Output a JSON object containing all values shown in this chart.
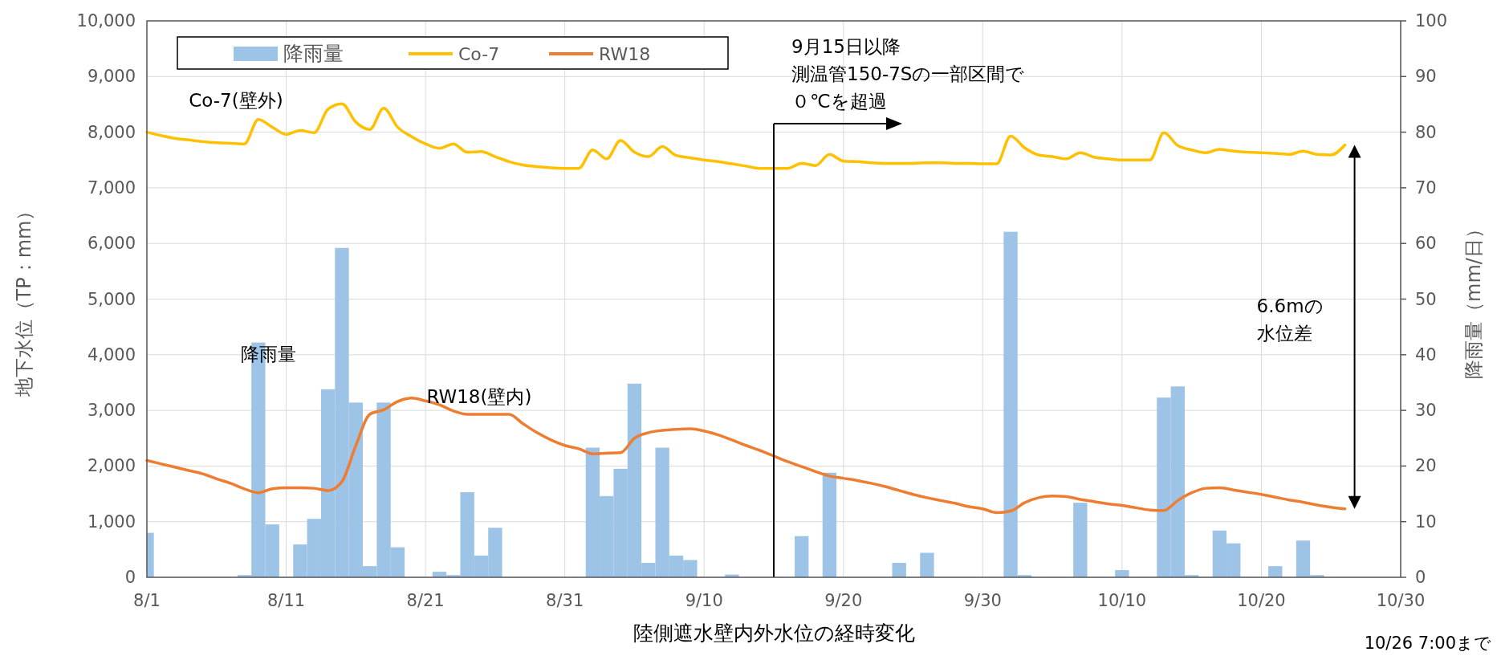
{
  "chart_data": {
    "type": "line",
    "xlabel": "陸側遮水壁内外水位の経時変化",
    "ylabel": "地下水位（TP：mm）",
    "y2label": "降雨量（mm/日）",
    "x": [
      "--08-01",
      "--08-02",
      "--08-03",
      "--08-04",
      "--08-05",
      "--08-06",
      "--08-07",
      "--08-08",
      "--08-09",
      "--08-10",
      "--08-11",
      "--08-12",
      "--08-13",
      "--08-14",
      "--08-15",
      "--08-16",
      "--08-17",
      "--08-18",
      "--08-19",
      "--08-20",
      "--08-21",
      "--08-22",
      "--08-23",
      "--08-24",
      "--08-25",
      "--08-26",
      "--08-27",
      "--08-28",
      "--08-29",
      "--08-30",
      "--08-31",
      "--09-01",
      "--09-02",
      "--09-03",
      "--09-04",
      "--09-05",
      "--09-06",
      "--09-07",
      "--09-08",
      "--09-09",
      "--09-10",
      "--09-11",
      "--09-12",
      "--09-13",
      "--09-14",
      "--09-15",
      "--09-16",
      "--09-17",
      "--09-18",
      "--09-19",
      "--09-20",
      "--09-21",
      "--09-22",
      "--09-23",
      "--09-24",
      "--09-25",
      "--09-26",
      "--09-27",
      "--09-28",
      "--09-29",
      "--09-30",
      "--10-01",
      "--10-02",
      "--10-03",
      "--10-04",
      "--10-05",
      "--10-06",
      "--10-07",
      "--10-08",
      "--10-09",
      "--10-10",
      "--10-11",
      "--10-12",
      "--10-13",
      "--10-14",
      "--10-15",
      "--10-16",
      "--10-17",
      "--10-18",
      "--10-19",
      "--10-20",
      "--10-21",
      "--10-22",
      "--10-23",
      "--10-24",
      "--10-25",
      "--10-26"
    ],
    "series": [
      {
        "name": "降雨量",
        "type": "bar",
        "axis": "y2",
        "color": "#9dc3e6",
        "x": [
          "--08-01",
          "--08-08",
          "--08-09",
          "--08-10",
          "--08-12",
          "--08-13",
          "--08-14",
          "--08-15",
          "--08-16",
          "--08-17",
          "--08-18",
          "--08-19",
          "--08-22",
          "--08-23",
          "--08-24",
          "--08-25",
          "--08-26",
          "--09-02",
          "--09-03",
          "--09-04",
          "--09-05",
          "--09-06",
          "--09-07",
          "--09-08",
          "--09-09",
          "--09-12",
          "--09-17",
          "--09-19",
          "--09-24",
          "--09-26",
          "--10-02",
          "--10-03",
          "--10-07",
          "--10-10",
          "--10-13",
          "--10-14",
          "--10-15",
          "--10-17",
          "--10-18",
          "--10-21",
          "--10-23",
          "--10-24"
        ],
        "values": [
          8,
          0.4,
          42.2,
          9.5,
          5.9,
          10.5,
          33.8,
          59.2,
          31.4,
          2,
          31.4,
          5.4,
          1,
          0.4,
          15.3,
          3.9,
          8.9,
          23.3,
          14.6,
          19.5,
          34.8,
          2.6,
          23.3,
          3.9,
          3.1,
          0.5,
          7.4,
          18.8,
          2.6,
          4.4,
          62.1,
          0.4,
          13.4,
          1.3,
          32.3,
          34.3,
          0.4,
          8.4,
          6.1,
          2,
          6.6,
          0.4
        ]
      },
      {
        "name": "Co-7",
        "color": "#ffc000",
        "values": [
          8000,
          7940,
          7890,
          7860,
          7830,
          7810,
          7800,
          7790,
          8230,
          8090,
          7960,
          8030,
          7990,
          8410,
          8510,
          8180,
          8050,
          8430,
          8090,
          7920,
          7790,
          7710,
          7790,
          7640,
          7650,
          7560,
          7470,
          7410,
          7380,
          7360,
          7350,
          7350,
          7680,
          7520,
          7850,
          7640,
          7560,
          7740,
          7580,
          7540,
          7500,
          7470,
          7430,
          7390,
          7350,
          7350,
          7350,
          7440,
          7400,
          7600,
          7480,
          7470,
          7450,
          7440,
          7440,
          7440,
          7450,
          7450,
          7440,
          7440,
          7430,
          7430,
          7930,
          7720,
          7590,
          7560,
          7520,
          7630,
          7550,
          7520,
          7500,
          7500,
          7500,
          7990,
          7760,
          7680,
          7630,
          7690,
          7660,
          7640,
          7630,
          7620,
          7600,
          7660,
          7600,
          7590,
          7770
        ]
      },
      {
        "name": "RW18",
        "color": "#ed7d31",
        "values": [
          2100,
          2040,
          1980,
          1920,
          1860,
          1770,
          1690,
          1590,
          1520,
          1590,
          1610,
          1610,
          1600,
          1560,
          1720,
          2370,
          2930,
          3010,
          3160,
          3220,
          3170,
          3100,
          2990,
          2930,
          2930,
          2930,
          2930,
          2760,
          2600,
          2470,
          2370,
          2310,
          2220,
          2230,
          2240,
          2500,
          2600,
          2640,
          2660,
          2670,
          2630,
          2560,
          2470,
          2370,
          2280,
          2180,
          2080,
          1990,
          1900,
          1820,
          1780,
          1740,
          1690,
          1630,
          1560,
          1490,
          1430,
          1380,
          1330,
          1270,
          1230,
          1160,
          1190,
          1340,
          1430,
          1460,
          1450,
          1400,
          1360,
          1320,
          1290,
          1250,
          1210,
          1200,
          1380,
          1520,
          1600,
          1610,
          1570,
          1530,
          1490,
          1440,
          1390,
          1350,
          1300,
          1260,
          1230
        ]
      }
    ],
    "xlim": [
      "--08-01",
      "--10-30"
    ],
    "xticks": [
      {
        "value": "--08-01",
        "label": "8/1"
      },
      {
        "value": "--08-11",
        "label": "8/11"
      },
      {
        "value": "--08-21",
        "label": "8/21"
      },
      {
        "value": "--08-31",
        "label": "8/31"
      },
      {
        "value": "--09-10",
        "label": "9/10"
      },
      {
        "value": "--09-20",
        "label": "9/20"
      },
      {
        "value": "--09-30",
        "label": "9/30"
      },
      {
        "value": "--10-10",
        "label": "10/10"
      },
      {
        "value": "--10-20",
        "label": "10/20"
      },
      {
        "value": "--10-30",
        "label": "10/30"
      }
    ],
    "ylim": [
      0,
      10000
    ],
    "yticks": [
      {
        "value": 0,
        "label": "0"
      },
      {
        "value": 1000,
        "label": "1,000"
      },
      {
        "value": 2000,
        "label": "2,000"
      },
      {
        "value": 3000,
        "label": "3,000"
      },
      {
        "value": 4000,
        "label": "4,000"
      },
      {
        "value": 5000,
        "label": "5,000"
      },
      {
        "value": 6000,
        "label": "6,000"
      },
      {
        "value": 7000,
        "label": "7,000"
      },
      {
        "value": 8000,
        "label": "8,000"
      },
      {
        "value": 9000,
        "label": "9,000"
      },
      {
        "value": 10000,
        "label": "10,000"
      }
    ],
    "y2lim": [
      0,
      100
    ],
    "y2ticks": [
      0,
      10,
      20,
      30,
      40,
      50,
      60,
      70,
      80,
      90,
      100
    ],
    "grid": true,
    "legend": "top left",
    "ref_lines": [
      {
        "axis": "x",
        "value": "--09-15",
        "color": "#000000"
      }
    ],
    "annotations": [
      "Co-7(壁外)",
      "降雨量",
      "RW18(壁内)",
      "9月15日以降",
      "測温管150-7Sの一部区間で",
      "０℃を超過",
      "6.6mの",
      "水位差",
      "10/26 7:00まで"
    ]
  }
}
